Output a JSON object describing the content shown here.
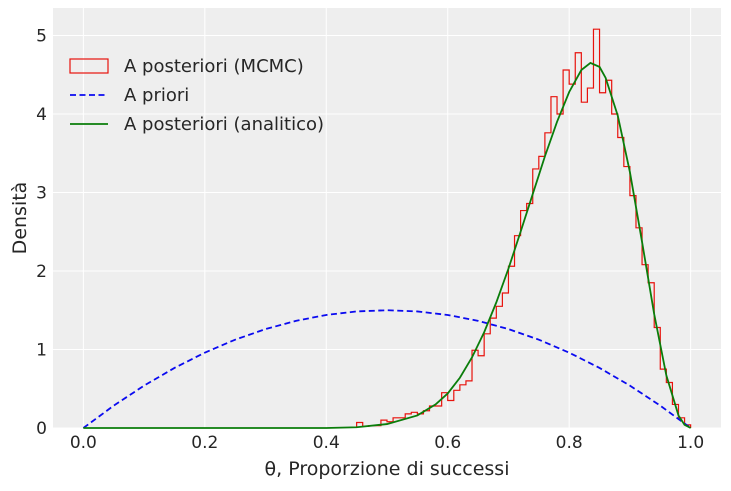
{
  "chart_data": {
    "type": "line",
    "xlabel": "θ, Proporzione di successi",
    "ylabel": "Densità",
    "xlim": [
      -0.05,
      1.05
    ],
    "ylim": [
      0,
      5.35
    ],
    "xticks": [
      0.0,
      0.2,
      0.4,
      0.6,
      0.8,
      1.0
    ],
    "xtick_labels": [
      "0.0",
      "0.2",
      "0.4",
      "0.6",
      "0.8",
      "1.0"
    ],
    "yticks": [
      0,
      1,
      2,
      3,
      4,
      5
    ],
    "ytick_labels": [
      "0",
      "1",
      "2",
      "3",
      "4",
      "5"
    ],
    "grid": true,
    "legend_position": "top-left",
    "colors": {
      "background": "#eeeeee",
      "grid": "#ffffff",
      "histogram": "#e8120c",
      "prior": "#0a0af0",
      "posterior": "#0a7d0a",
      "text": "#262626"
    },
    "series": [
      {
        "name": "A posteriori (MCMC)",
        "type": "histogram",
        "style": "step",
        "bin_width": 0.01,
        "bin_edges_start": 0.45,
        "heights": [
          0.07,
          0.02,
          0.03,
          0.03,
          0.1,
          0.08,
          0.13,
          0.13,
          0.18,
          0.2,
          0.18,
          0.22,
          0.28,
          0.28,
          0.45,
          0.35,
          0.48,
          0.55,
          0.6,
          0.99,
          0.92,
          1.2,
          1.4,
          1.55,
          1.72,
          2.06,
          2.45,
          2.77,
          2.86,
          3.3,
          3.46,
          3.76,
          4.22,
          4.0,
          4.56,
          4.38,
          4.78,
          4.15,
          4.33,
          5.08,
          4.27,
          4.43,
          4.0,
          3.7,
          3.33,
          2.96,
          2.55,
          2.08,
          1.85,
          1.28,
          0.75,
          0.58,
          0.3,
          0.13,
          0.04
        ]
      },
      {
        "name": "A priori",
        "type": "line",
        "style": "dashed",
        "x": [
          0.0,
          0.05,
          0.1,
          0.15,
          0.2,
          0.25,
          0.3,
          0.35,
          0.4,
          0.45,
          0.5,
          0.55,
          0.6,
          0.65,
          0.7,
          0.75,
          0.8,
          0.85,
          0.9,
          0.95,
          1.0
        ],
        "y": [
          0.0,
          0.285,
          0.54,
          0.765,
          0.96,
          1.125,
          1.26,
          1.365,
          1.44,
          1.485,
          1.5,
          1.485,
          1.44,
          1.365,
          1.26,
          1.125,
          0.96,
          0.765,
          0.54,
          0.285,
          0.0
        ]
      },
      {
        "name": "A posteriori (analitico)",
        "type": "line",
        "style": "solid",
        "x": [
          0.0,
          0.3,
          0.4,
          0.45,
          0.5,
          0.55,
          0.58,
          0.6,
          0.62,
          0.64,
          0.66,
          0.68,
          0.7,
          0.72,
          0.74,
          0.76,
          0.78,
          0.8,
          0.82,
          0.835,
          0.85,
          0.86,
          0.88,
          0.9,
          0.92,
          0.94,
          0.96,
          0.98,
          0.99,
          1.0
        ],
        "y": [
          0.0,
          0.0,
          0.0,
          0.01,
          0.05,
          0.16,
          0.3,
          0.44,
          0.64,
          0.9,
          1.22,
          1.6,
          2.03,
          2.5,
          2.98,
          3.46,
          3.9,
          4.28,
          4.56,
          4.65,
          4.6,
          4.46,
          3.98,
          3.26,
          2.37,
          1.45,
          0.67,
          0.16,
          0.04,
          0.0
        ]
      }
    ]
  }
}
